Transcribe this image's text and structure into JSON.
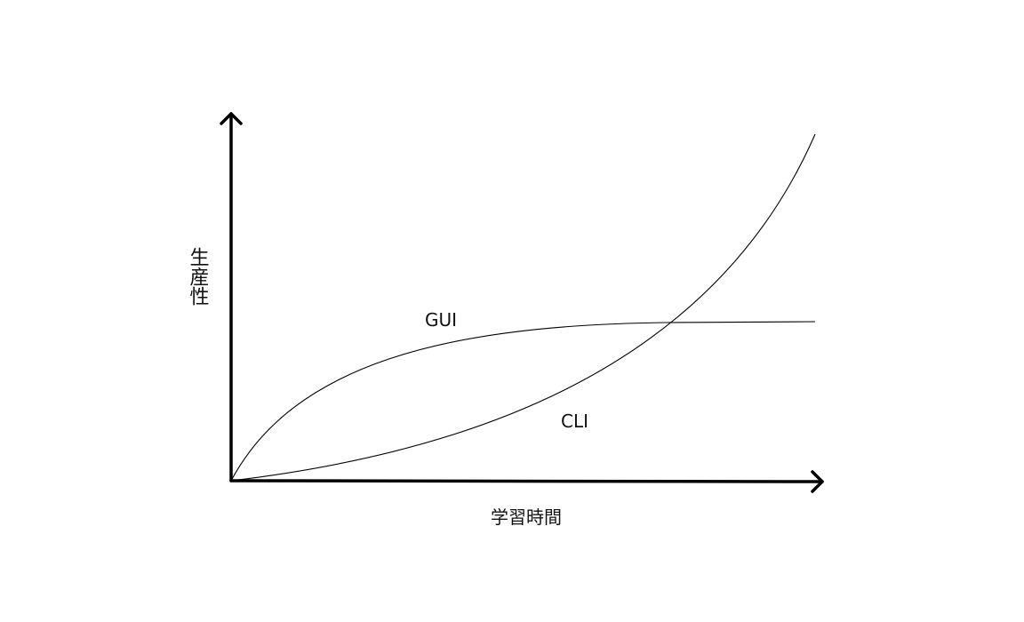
{
  "axes": {
    "y_label": "生産性",
    "x_label": "学習時間"
  },
  "curves": [
    {
      "id": "gui",
      "label": "GUI"
    },
    {
      "id": "cli",
      "label": "CLI"
    }
  ]
}
